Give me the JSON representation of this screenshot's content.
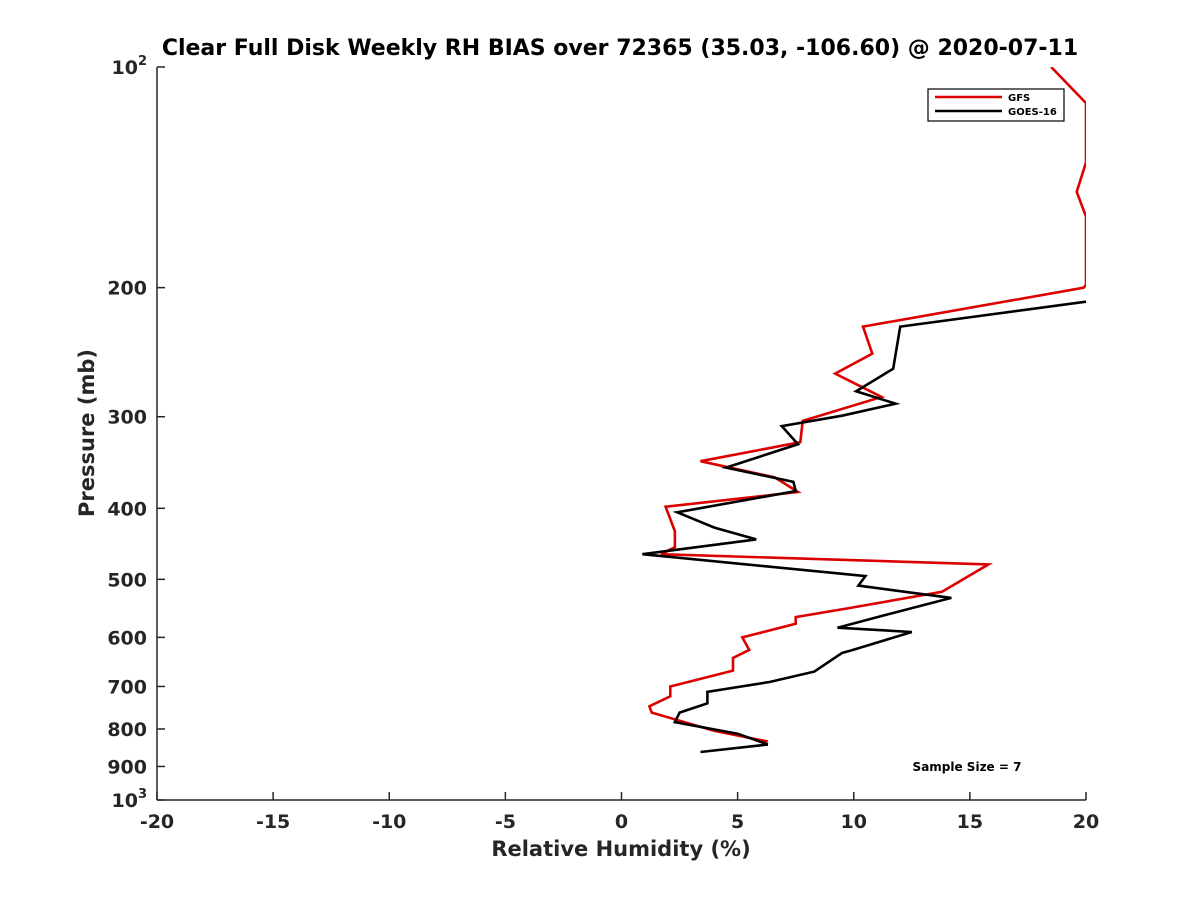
{
  "chart_data": {
    "type": "line",
    "title": "Clear Full Disk Weekly RH BIAS over 72365 (35.03, -106.60) @ 2020-07-11",
    "xlabel": "Relative Humidity (%)",
    "ylabel": "Pressure (mb)",
    "xlim": [
      -20,
      20
    ],
    "ylim": [
      100,
      1000
    ],
    "y_scale": "log",
    "y_reversed": true,
    "grid": false,
    "legend_position": "top-right",
    "x_ticks": [
      -20,
      -15,
      -10,
      -5,
      0,
      5,
      10,
      15,
      20
    ],
    "x_tick_labels": [
      "-20",
      "-15",
      "-10",
      "-5",
      "0",
      "5",
      "10",
      "15",
      "20"
    ],
    "y_ticks": [
      200,
      300,
      400,
      500,
      600,
      700,
      800,
      900
    ],
    "y_tick_labels": [
      "200",
      "300",
      "400",
      "500",
      "600",
      "700",
      "800",
      "900"
    ],
    "y_end_ticks": [
      {
        "value": 100,
        "base": "10",
        "exponent": "2"
      },
      {
        "value": 1000,
        "base": "10",
        "exponent": "3"
      }
    ],
    "annotation": "Sample Size = 7",
    "series": [
      {
        "name": "GFS",
        "color": "#dd0000",
        "points": [
          [
            18.5,
            100
          ],
          [
            20.0,
            112
          ],
          [
            20.0,
            135
          ],
          [
            19.6,
            148
          ],
          [
            20.0,
            160
          ],
          [
            20.0,
            198
          ],
          [
            19.9,
            200
          ],
          [
            10.4,
            226
          ],
          [
            10.8,
            246
          ],
          [
            9.2,
            262
          ],
          [
            11.2,
            282
          ],
          [
            7.8,
            304
          ],
          [
            7.7,
            325
          ],
          [
            3.4,
            345
          ],
          [
            6.6,
            363
          ],
          [
            7.6,
            380
          ],
          [
            1.9,
            398
          ],
          [
            2.3,
            430
          ],
          [
            2.3,
            452
          ],
          [
            1.7,
            462
          ],
          [
            15.8,
            477
          ],
          [
            13.8,
            520
          ],
          [
            9.7,
            548
          ],
          [
            7.5,
            563
          ],
          [
            7.5,
            575
          ],
          [
            5.2,
            600
          ],
          [
            5.5,
            624
          ],
          [
            4.8,
            640
          ],
          [
            4.8,
            666
          ],
          [
            2.1,
            700
          ],
          [
            2.1,
            722
          ],
          [
            1.2,
            745
          ],
          [
            1.3,
            760
          ],
          [
            4.0,
            805
          ],
          [
            6.3,
            832
          ]
        ]
      },
      {
        "name": "GOES-16",
        "color": "#000000",
        "points": [
          [
            20.0,
            209
          ],
          [
            12.0,
            226
          ],
          [
            11.7,
            258
          ],
          [
            10.1,
            277
          ],
          [
            11.8,
            288
          ],
          [
            9.5,
            299
          ],
          [
            6.9,
            309
          ],
          [
            7.6,
            327
          ],
          [
            4.5,
            352
          ],
          [
            7.4,
            368
          ],
          [
            7.5,
            379
          ],
          [
            2.4,
            405
          ],
          [
            4.0,
            425
          ],
          [
            5.8,
            441
          ],
          [
            0.9,
            462
          ],
          [
            10.5,
            495
          ],
          [
            10.2,
            510
          ],
          [
            14.2,
            530
          ],
          [
            11.3,
            560
          ],
          [
            9.3,
            582
          ],
          [
            12.5,
            590
          ],
          [
            9.9,
            625
          ],
          [
            9.5,
            630
          ],
          [
            8.3,
            668
          ],
          [
            6.4,
            690
          ],
          [
            3.7,
            712
          ],
          [
            3.7,
            738
          ],
          [
            2.5,
            760
          ],
          [
            2.3,
            783
          ],
          [
            5.0,
            812
          ],
          [
            6.3,
            840
          ],
          [
            3.4,
            860
          ]
        ]
      }
    ]
  }
}
